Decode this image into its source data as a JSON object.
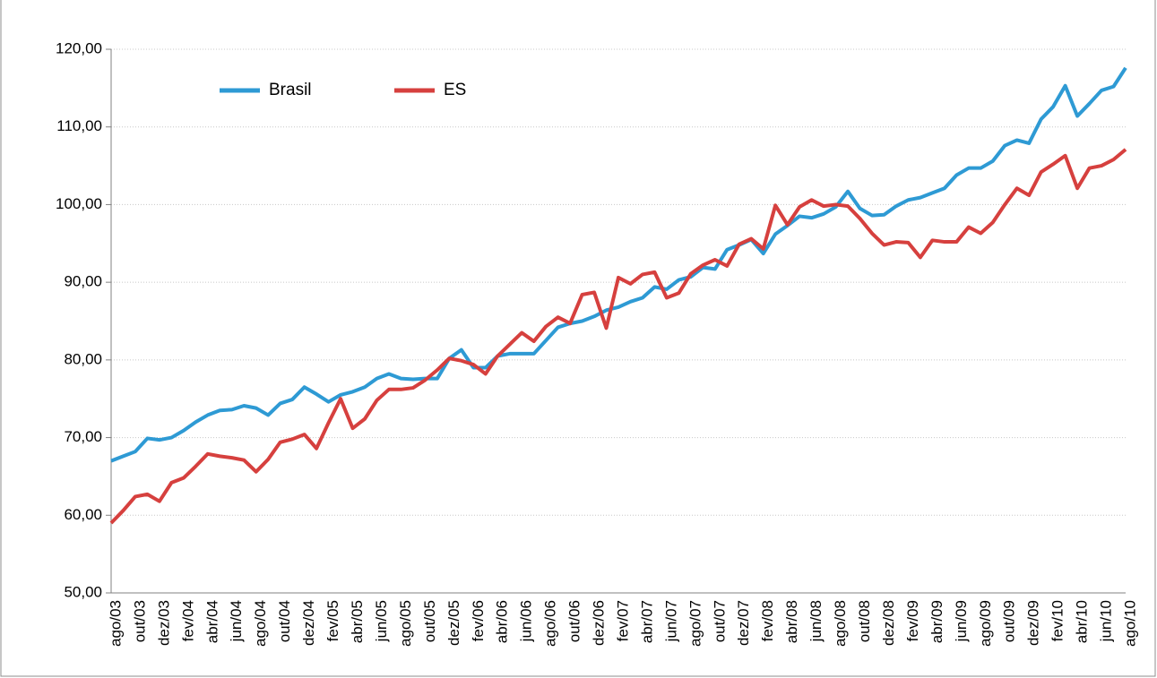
{
  "chart_data": {
    "type": "line",
    "categories": [
      "ago/03",
      null,
      "out/03",
      null,
      "dez/03",
      null,
      "fev/04",
      null,
      "abr/04",
      null,
      "jun/04",
      null,
      "ago/04",
      null,
      "out/04",
      null,
      "dez/04",
      null,
      "fev/05",
      null,
      "abr/05",
      null,
      "jun/05",
      null,
      "ago/05",
      null,
      "out/05",
      null,
      "dez/05",
      null,
      "fev/06",
      null,
      "abr/06",
      null,
      "jun/06",
      null,
      "ago/06",
      null,
      "out/06",
      null,
      "dez/06",
      null,
      "fev/07",
      null,
      "abr/07",
      null,
      "jun/07",
      null,
      "ago/07",
      null,
      "out/07",
      null,
      "dez/07",
      null,
      "fev/08",
      null,
      "abr/08",
      null,
      "jun/08",
      null,
      "ago/08",
      null,
      "out/08",
      null,
      "dez/08",
      null,
      "fev/09",
      null,
      "abr/09",
      null,
      "jun/09",
      null,
      "ago/09",
      null,
      "out/09",
      null,
      "dez/09",
      null,
      "fev/10",
      null,
      "abr/10",
      null,
      "jun/10",
      null,
      "ago/10"
    ],
    "series": [
      {
        "name": "Brasil",
        "color": "#2e9ad4",
        "values": [
          67.0,
          67.6,
          68.2,
          69.9,
          69.7,
          70.0,
          70.9,
          72.0,
          72.9,
          73.5,
          73.6,
          74.1,
          73.8,
          72.9,
          74.4,
          74.9,
          76.5,
          75.6,
          74.6,
          75.5,
          75.9,
          76.5,
          77.6,
          78.2,
          77.6,
          77.5,
          77.6,
          77.6,
          80.2,
          81.3,
          79.0,
          79.0,
          80.5,
          80.8,
          80.8,
          80.8,
          82.5,
          84.2,
          84.7,
          85.0,
          85.6,
          86.4,
          86.8,
          87.5,
          88.0,
          89.4,
          89.1,
          90.3,
          90.7,
          91.9,
          91.7,
          94.2,
          94.8,
          95.5,
          93.7,
          96.2,
          97.3,
          98.5,
          98.3,
          98.8,
          99.7,
          101.7,
          99.5,
          98.6,
          98.7,
          99.8,
          100.6,
          100.9,
          101.5,
          102.1,
          103.8,
          104.7,
          104.7,
          105.6,
          107.6,
          108.3,
          107.9,
          111.0,
          112.6,
          115.3,
          111.4,
          113.0,
          114.7,
          115.2,
          117.6
        ]
      },
      {
        "name": "ES",
        "color": "#d6403e",
        "values": [
          59.0,
          60.6,
          62.4,
          62.7,
          61.8,
          64.2,
          64.8,
          66.3,
          67.9,
          67.6,
          67.4,
          67.1,
          65.6,
          67.2,
          69.4,
          69.8,
          70.4,
          68.6,
          71.9,
          75.0,
          71.2,
          72.4,
          74.8,
          76.2,
          76.2,
          76.4,
          77.4,
          78.7,
          80.2,
          79.9,
          79.4,
          78.2,
          80.5,
          82.0,
          83.5,
          82.4,
          84.3,
          85.5,
          84.7,
          88.4,
          88.7,
          84.1,
          90.6,
          89.8,
          91.0,
          91.3,
          88.0,
          88.6,
          91.1,
          92.2,
          92.9,
          92.1,
          94.9,
          95.6,
          94.3,
          99.9,
          97.4,
          99.7,
          100.6,
          99.8,
          100.0,
          99.8,
          98.2,
          96.3,
          94.8,
          95.2,
          95.1,
          93.2,
          95.4,
          95.2,
          95.2,
          97.1,
          96.3,
          97.7,
          100.0,
          102.1,
          101.2,
          104.2,
          105.2,
          106.3,
          102.1,
          104.7,
          105.0,
          105.8,
          107.1
        ]
      }
    ],
    "ylim": [
      50,
      120
    ],
    "yticks": [
      {
        "value": 50,
        "label": "50,00"
      },
      {
        "value": 60,
        "label": "60,00"
      },
      {
        "value": 70,
        "label": "70,00"
      },
      {
        "value": 80,
        "label": "80,00"
      },
      {
        "value": 90,
        "label": "90,00"
      },
      {
        "value": 100,
        "label": "100,00"
      },
      {
        "value": 110,
        "label": "110,00"
      },
      {
        "value": 120,
        "label": "120,00"
      }
    ],
    "grid": true,
    "legend": "top-left"
  }
}
